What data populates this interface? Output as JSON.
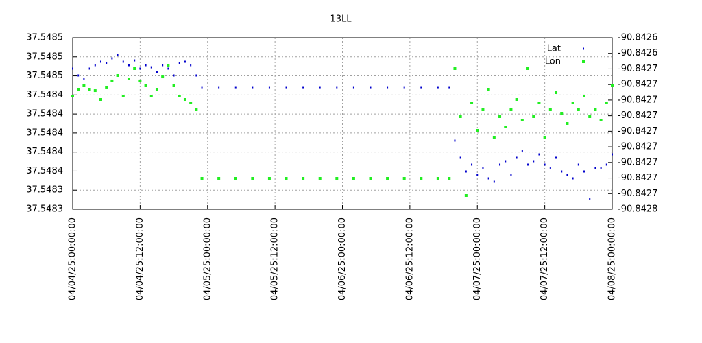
{
  "chart_data": {
    "type": "scatter",
    "title": "13LL",
    "x": [
      "04/04/25:00:00:00",
      "04/04/25:01:00:00",
      "04/04/25:02:00:00",
      "04/04/25:03:00:00",
      "04/04/25:04:00:00",
      "04/04/25:05:00:00",
      "04/04/25:06:00:00",
      "04/04/25:07:00:00",
      "04/04/25:08:00:00",
      "04/04/25:09:00:00",
      "04/04/25:10:00:00",
      "04/04/25:11:00:00",
      "04/04/25:12:00:00",
      "04/04/25:13:00:00",
      "04/04/25:14:00:00",
      "04/04/25:15:00:00",
      "04/04/25:16:00:00",
      "04/04/25:17:00:00",
      "04/04/25:18:00:00",
      "04/04/25:19:00:00",
      "04/04/25:20:00:00",
      "04/04/25:21:00:00",
      "04/04/25:22:00:00",
      "04/04/25:23:00:00",
      "04/05/25:02:00:00",
      "04/05/25:05:00:00",
      "04/05/25:08:00:00",
      "04/05/25:11:00:00",
      "04/05/25:14:00:00",
      "04/05/25:17:00:00",
      "04/05/25:20:00:00",
      "04/05/25:23:00:00",
      "04/06/25:02:00:00",
      "04/06/25:05:00:00",
      "04/06/25:08:00:00",
      "04/06/25:11:00:00",
      "04/06/25:14:00:00",
      "04/06/25:17:00:00",
      "04/06/25:19:00:00",
      "04/06/25:20:00:00",
      "04/06/25:21:00:00",
      "04/06/25:22:00:00",
      "04/06/25:23:00:00",
      "04/07/25:00:00:00",
      "04/07/25:01:00:00",
      "04/07/25:02:00:00",
      "04/07/25:03:00:00",
      "04/07/25:04:00:00",
      "04/07/25:05:00:00",
      "04/07/25:06:00:00",
      "04/07/25:07:00:00",
      "04/07/25:08:00:00",
      "04/07/25:09:00:00",
      "04/07/25:10:00:00",
      "04/07/25:11:00:00",
      "04/07/25:12:00:00",
      "04/07/25:13:00:00",
      "04/07/25:14:00:00",
      "04/07/25:15:00:00",
      "04/07/25:16:00:00",
      "04/07/25:17:00:00",
      "04/07/25:18:00:00",
      "04/07/25:19:00:00",
      "04/07/25:20:00:00",
      "04/07/25:21:00:00",
      "04/07/25:22:00:00",
      "04/07/25:23:00:00",
      "04/08/25:00:00:00"
    ],
    "series": [
      {
        "name": "Lat",
        "color": "#0000cc",
        "values": [
          37.5484676,
          37.5484604,
          37.5484568,
          37.5484676,
          37.5484712,
          37.5484748,
          37.5484734,
          37.5484784,
          37.548482,
          37.5484748,
          37.5484712,
          37.5484762,
          37.5484676,
          37.5484712,
          37.548469,
          37.548464,
          37.5484712,
          37.5484676,
          37.5484604,
          37.5484734,
          37.5484748,
          37.5484712,
          37.5484604,
          37.5484474,
          37.5484474,
          37.5484474,
          37.5484474,
          37.5484474,
          37.5484474,
          37.5484474,
          37.5484474,
          37.5484474,
          37.5484474,
          37.5484474,
          37.5484474,
          37.5484474,
          37.5484474,
          37.5484474,
          37.5484474,
          37.548392,
          37.548374,
          37.5483596,
          37.5483668,
          37.548356,
          37.5483632,
          37.5483524,
          37.5483488,
          37.5483668,
          37.5483704,
          37.548356,
          37.548374,
          37.5483812,
          37.5483668,
          37.5483704,
          37.5483776,
          37.5483668,
          37.5483632,
          37.548374,
          37.5483596,
          37.548356,
          37.5483524,
          37.5483668,
          37.5483596,
          37.5483308,
          37.5483632,
          37.5483632,
          37.5483668,
          37.5483776
        ]
      },
      {
        "name": "Lon",
        "color": "#22ee22",
        "axis": "y2",
        "values": [
          -90.8426774,
          -90.842673,
          -90.8426708,
          -90.842673,
          -90.8426739,
          -90.8426796,
          -90.8426721,
          -90.8426677,
          -90.8426642,
          -90.8426774,
          -90.8426664,
          -90.8426598,
          -90.8426677,
          -90.8426708,
          -90.8426774,
          -90.842673,
          -90.8426651,
          -90.8426576,
          -90.8426708,
          -90.8426774,
          -90.8426796,
          -90.8426818,
          -90.8426862,
          -90.8427302,
          -90.8427302,
          -90.8427302,
          -90.8427302,
          -90.8427302,
          -90.8427302,
          -90.8427302,
          -90.8427302,
          -90.8427302,
          -90.8427302,
          -90.8427302,
          -90.8427302,
          -90.8427302,
          -90.8427302,
          -90.8427302,
          -90.8427302,
          -90.8426598,
          -90.8426906,
          -90.8427412,
          -90.8426818,
          -90.8426994,
          -90.8426862,
          -90.842673,
          -90.8427038,
          -90.8426906,
          -90.8426972,
          -90.8426862,
          -90.8426796,
          -90.8426928,
          -90.8426598,
          -90.8426906,
          -90.8426818,
          -90.8427038,
          -90.8426862,
          -90.8426752,
          -90.8426884,
          -90.842695,
          -90.8426818,
          -90.8426862,
          -90.8426774,
          -90.8426906,
          -90.8426862,
          -90.8426928,
          -90.8426818,
          -90.8426708
        ]
      }
    ],
    "xlim": [
      "04/04/25:00:00:00",
      "04/08/25:00:00:00"
    ],
    "xticks": [
      "04/04/25:00:00:00",
      "04/04/25:12:00:00",
      "04/05/25:00:00:00",
      "04/05/25:12:00:00",
      "04/06/25:00:00:00",
      "04/06/25:12:00:00",
      "04/07/25:00:00:00",
      "04/07/25:12:00:00",
      "04/08/25:00:00:00"
    ],
    "ylim": [
      37.54832,
      37.5485
    ],
    "yticks": [
      {
        "value": 37.5485,
        "label": "37.5485"
      },
      {
        "value": 37.54848,
        "label": "37.5485"
      },
      {
        "value": 37.54846,
        "label": "37.5485"
      },
      {
        "value": 37.54844,
        "label": "37.5484"
      },
      {
        "value": 37.54842,
        "label": "37.5484"
      },
      {
        "value": 37.5484,
        "label": "37.5484"
      },
      {
        "value": 37.54838,
        "label": "37.5484"
      },
      {
        "value": 37.54836,
        "label": "37.5484"
      },
      {
        "value": 37.54834,
        "label": "37.5483"
      },
      {
        "value": 37.54832,
        "label": "37.5483"
      }
    ],
    "y2lim": [
      -90.84275,
      -90.84264
    ],
    "y2ticks": [
      {
        "value": -90.84264,
        "label": "-90.8426"
      },
      {
        "value": -90.84265,
        "label": "-90.8426"
      },
      {
        "value": -90.84266,
        "label": "-90.8427"
      },
      {
        "value": -90.84267,
        "label": "-90.8427"
      },
      {
        "value": -90.84268,
        "label": "-90.8427"
      },
      {
        "value": -90.84269,
        "label": "-90.8427"
      },
      {
        "value": -90.8427,
        "label": "-90.8427"
      },
      {
        "value": -90.84271,
        "label": "-90.8427"
      },
      {
        "value": -90.84272,
        "label": "-90.8427"
      },
      {
        "value": -90.84273,
        "label": "-90.8427"
      },
      {
        "value": -90.84274,
        "label": "-90.8427"
      },
      {
        "value": -90.84275,
        "label": "-90.8428"
      }
    ],
    "grid": true,
    "legend": "top right"
  }
}
